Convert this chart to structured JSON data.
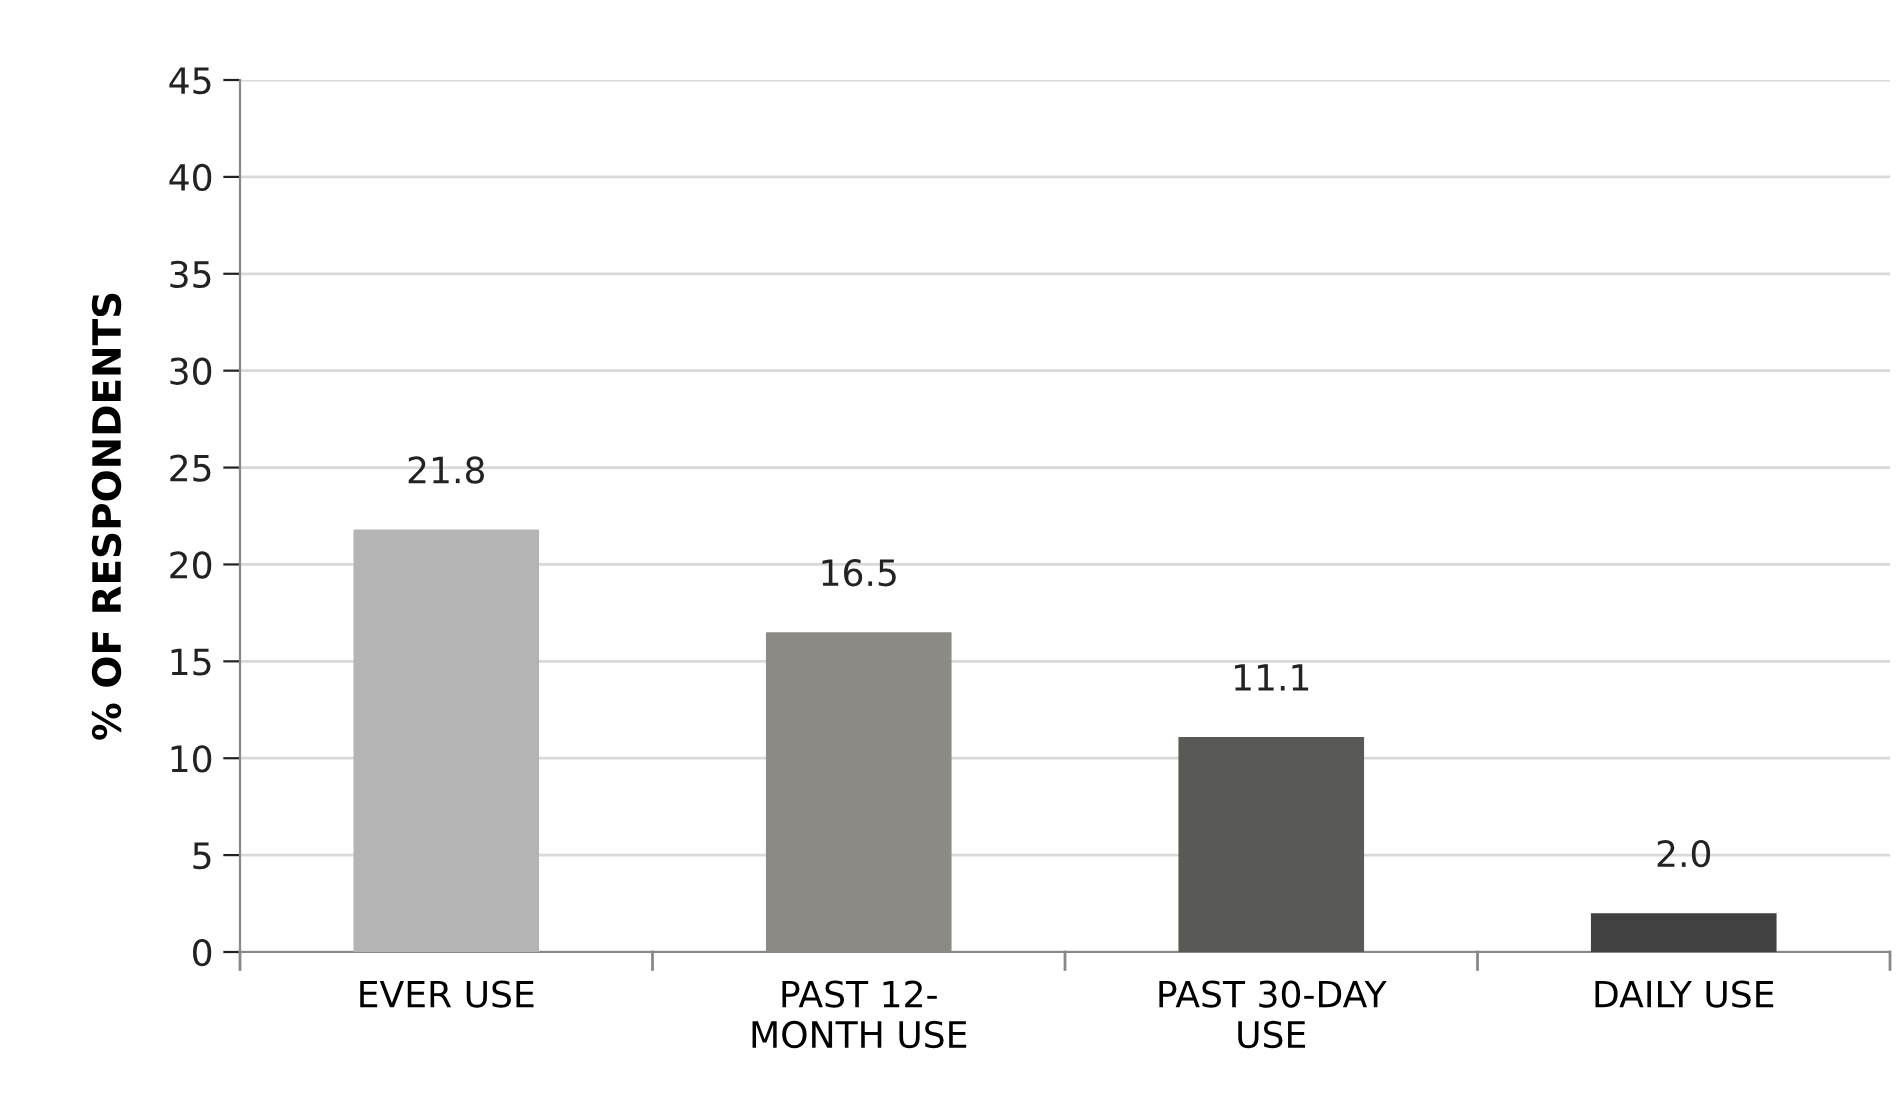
{
  "chart_data": {
    "type": "bar",
    "ylabel": "% OF RESPONDENTS",
    "categories": [
      "EVER USE",
      "PAST 12-\nMONTH USE",
      "PAST 30-DAY\nUSE",
      "DAILY USE"
    ],
    "values": [
      21.8,
      16.5,
      11.1,
      2.0
    ],
    "colors": [
      "#b4b4b4",
      "#8b8a85",
      "#595a55",
      "#414141"
    ],
    "value_labels": [
      "21.8",
      "16.5",
      "11.1",
      "2.0"
    ],
    "ylim": [
      0,
      45
    ],
    "yticks": [
      0,
      5,
      10,
      15,
      20,
      25,
      30,
      35,
      40,
      45
    ],
    "grid": "y",
    "legend": false
  }
}
